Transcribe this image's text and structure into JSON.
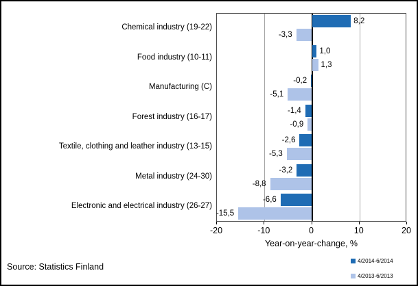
{
  "chart_data": {
    "type": "bar",
    "orientation": "horizontal",
    "categories": [
      "Chemical industry (19-22)",
      "Food industry (10-11)",
      "Manufacturing (C)",
      "Forest industry (16-17)",
      "Textile, clothing and leather industry (13-15)",
      "Metal industry (24-30)",
      "Electronic and electrical industry (26-27)"
    ],
    "series": [
      {
        "name": "4/2014-6/2014",
        "color": "#1f6cb4",
        "values": [
          8.2,
          1.0,
          -0.2,
          -1.4,
          -2.6,
          -3.2,
          -6.6
        ],
        "labels": [
          "8,2",
          "1,0",
          "-0,2",
          "-1,4",
          "-2,6",
          "-3,2",
          "-6,6"
        ]
      },
      {
        "name": "4/2013-6/2013",
        "color": "#aec3e8",
        "values": [
          -3.3,
          1.3,
          -5.1,
          -0.9,
          -5.3,
          -8.8,
          -15.5
        ],
        "labels": [
          "-3,3",
          "1,3",
          "-5,1",
          "-0,9",
          "-5,3",
          "-8,8",
          "-15,5"
        ]
      }
    ],
    "xlabel": "Year-on-year-change, %",
    "xlim": [
      -20,
      20
    ],
    "xticks": [
      -20,
      -10,
      0,
      10,
      20
    ],
    "xtick_labels": [
      "-20",
      "-10",
      "0",
      "10",
      "20"
    ],
    "grid": true,
    "legend_position": "bottom-right",
    "zero_line_color": "#000000",
    "gridline_color": "#a6a6a6"
  },
  "footer": {
    "source": "Source: Statistics Finland"
  }
}
